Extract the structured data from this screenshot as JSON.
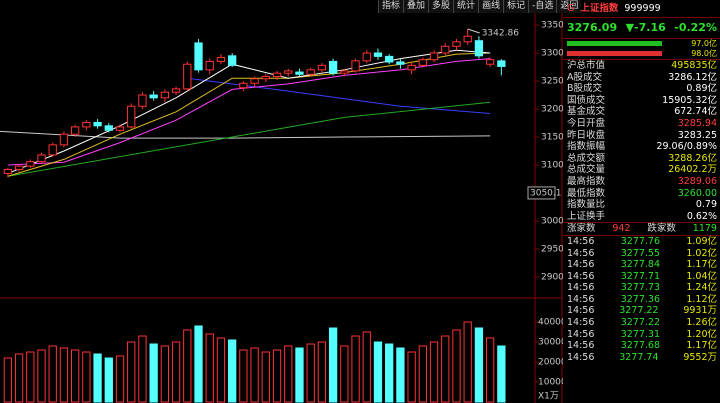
{
  "toolbar": [
    "指标",
    "叠加",
    "多股",
    "统计",
    "画线",
    "标记",
    "-自选",
    "返回"
  ],
  "chart_data": [
    {
      "type": "candlestick",
      "up_color": "#ff3232",
      "down_color": "#54ffff",
      "xlim": [
        -0.7,
        47
      ],
      "ylim": [
        2862.5,
        3367.9
      ],
      "yticks": [
        2900,
        2950,
        3000,
        3100,
        3150,
        3200,
        3250,
        3300,
        3350
      ],
      "annotations": [
        3342.86
      ],
      "cursor": 3050.1,
      "candles": [
        [
          3085,
          3095,
          3078,
          3092
        ],
        [
          3092,
          3100,
          3088,
          3098
        ],
        [
          3098,
          3110,
          3095,
          3106
        ],
        [
          3106,
          3122,
          3102,
          3118
        ],
        [
          3118,
          3140,
          3115,
          3136
        ],
        [
          3136,
          3160,
          3132,
          3155
        ],
        [
          3155,
          3172,
          3150,
          3168
        ],
        [
          3168,
          3180,
          3162,
          3176
        ],
        [
          3176,
          3182,
          3165,
          3170
        ],
        [
          3170,
          3175,
          3158,
          3162
        ],
        [
          3162,
          3172,
          3158,
          3168
        ],
        [
          3168,
          3210,
          3165,
          3205
        ],
        [
          3205,
          3230,
          3200,
          3225
        ],
        [
          3225,
          3232,
          3215,
          3220
        ],
        [
          3220,
          3235,
          3212,
          3230
        ],
        [
          3230,
          3240,
          3225,
          3236
        ],
        [
          3236,
          3285,
          3232,
          3280
        ],
        [
          3318,
          3325,
          3265,
          3270
        ],
        [
          3270,
          3290,
          3262,
          3285
        ],
        [
          3285,
          3298,
          3280,
          3292
        ],
        [
          3295,
          3300,
          3275,
          3278
        ],
        [
          3238,
          3250,
          3232,
          3246
        ],
        [
          3246,
          3258,
          3240,
          3254
        ],
        [
          3254,
          3262,
          3248,
          3258
        ],
        [
          3258,
          3268,
          3252,
          3264
        ],
        [
          3264,
          3272,
          3258,
          3268
        ],
        [
          3266,
          3272,
          3258,
          3262
        ],
        [
          3262,
          3274,
          3258,
          3270
        ],
        [
          3270,
          3282,
          3265,
          3278
        ],
        [
          3285,
          3290,
          3260,
          3264
        ],
        [
          3264,
          3272,
          3258,
          3268
        ],
        [
          3268,
          3290,
          3265,
          3286
        ],
        [
          3286,
          3305,
          3282,
          3300
        ],
        [
          3300,
          3308,
          3288,
          3294
        ],
        [
          3294,
          3298,
          3280,
          3284
        ],
        [
          3284,
          3290,
          3272,
          3280
        ],
        [
          3270,
          3285,
          3262,
          3278
        ],
        [
          3278,
          3292,
          3274,
          3288
        ],
        [
          3288,
          3305,
          3284,
          3300
        ],
        [
          3300,
          3318,
          3296,
          3312
        ],
        [
          3312,
          3325,
          3305,
          3320
        ],
        [
          3320,
          3342.86,
          3315,
          3330
        ],
        [
          3322,
          3330,
          3290,
          3295
        ],
        [
          3280,
          3292,
          3275,
          3288
        ],
        [
          3285.94,
          3289.06,
          3260.0,
          3276.09
        ]
      ],
      "lines": [
        {
          "color": "#c8c8c8",
          "x": [
            -0.7,
            10,
            20,
            30,
            43
          ],
          "values": [
            3160,
            3148,
            3148,
            3150,
            3152
          ]
        },
        {
          "color": "#3c3cff",
          "x": [
            16,
            25,
            35,
            43
          ],
          "values": [
            3255,
            3232,
            3205,
            3192
          ]
        },
        {
          "color": "#22aa22",
          "x": [
            0,
            10,
            20,
            30,
            43
          ],
          "values": [
            3080,
            3115,
            3150,
            3185,
            3212
          ]
        },
        {
          "color": "#ff40ff",
          "x": [
            0,
            5,
            10,
            15,
            20,
            25,
            30,
            35,
            40,
            43
          ],
          "values": [
            3100,
            3105,
            3140,
            3180,
            3235,
            3245,
            3260,
            3270,
            3285,
            3290
          ]
        },
        {
          "color": "#e0c020",
          "x": [
            0,
            5,
            10,
            15,
            20,
            25,
            30,
            35,
            40,
            43
          ],
          "values": [
            3080,
            3110,
            3155,
            3195,
            3255,
            3255,
            3265,
            3280,
            3298,
            3300
          ]
        },
        {
          "color": "#ffffff",
          "x": [
            0,
            5,
            10,
            15,
            20,
            25,
            30,
            35,
            40,
            43
          ],
          "values": [
            3085,
            3125,
            3170,
            3220,
            3280,
            3255,
            3270,
            3290,
            3305,
            3300
          ]
        }
      ]
    },
    {
      "type": "bar",
      "ylim": [
        0,
        52000
      ],
      "yticks": [
        10000,
        20000,
        30000,
        40000
      ],
      "y_unit": "X1万",
      "values": [
        22000,
        24000,
        25000,
        26000,
        28000,
        27000,
        26000,
        25000,
        24000,
        22000,
        23000,
        30000,
        33000,
        29000,
        28000,
        30000,
        36000,
        38000,
        34000,
        32000,
        31000,
        26000,
        27000,
        25000,
        26000,
        28000,
        27000,
        29000,
        30000,
        37000,
        28000,
        33000,
        35000,
        30000,
        29000,
        27000,
        25000,
        28000,
        30000,
        33000,
        36000,
        40000,
        37000,
        32000,
        28000
      ]
    }
  ],
  "panel": {
    "logo": "G",
    "name": "上证指数",
    "code": "999999",
    "price": "3276.09",
    "change": "▼-7.16",
    "change_pct": "-0.22%",
    "buy": "97.0亿",
    "sell": "98.0亿",
    "stats": [
      [
        "沪总市值",
        "495835亿"
      ],
      [
        "A股成交",
        "3286.12亿"
      ],
      [
        "B股成交",
        "0.89亿"
      ],
      [
        "国债成交",
        "15905.32亿"
      ],
      [
        "基金成交",
        "672.74亿"
      ],
      [
        "今日开盘",
        "3285.94"
      ],
      [
        "昨日收盘",
        "3283.25"
      ],
      [
        "指数振幅",
        "29.06/0.89%"
      ],
      [
        "总成交额",
        "3288.26亿"
      ],
      [
        "总成交量",
        "26402.2万"
      ],
      [
        "最高指数",
        "3289.06"
      ],
      [
        "最低指数",
        "3260.00"
      ],
      [
        "指数量比",
        "0.79"
      ],
      [
        "上证换手",
        "0.62%"
      ]
    ],
    "up_label": "涨家数",
    "up": "942",
    "down_label": "跌家数",
    "down": "1179",
    "trades": [
      [
        "14:56",
        "3277.76",
        "1.09亿"
      ],
      [
        "14:56",
        "3277.55",
        "1.02亿"
      ],
      [
        "14:56",
        "3277.84",
        "1.17亿"
      ],
      [
        "14:56",
        "3277.71",
        "1.04亿"
      ],
      [
        "14:56",
        "3277.73",
        "1.24亿"
      ],
      [
        "14:56",
        "3277.36",
        "1.12亿"
      ],
      [
        "14:56",
        "3277.22",
        "9931万"
      ],
      [
        "14:56",
        "3277.22",
        "1.26亿"
      ],
      [
        "14:56",
        "3277.31",
        "1.20亿"
      ],
      [
        "14:56",
        "3277.68",
        "1.17亿"
      ],
      [
        "14:56",
        "3277.74",
        "9552万"
      ]
    ]
  }
}
